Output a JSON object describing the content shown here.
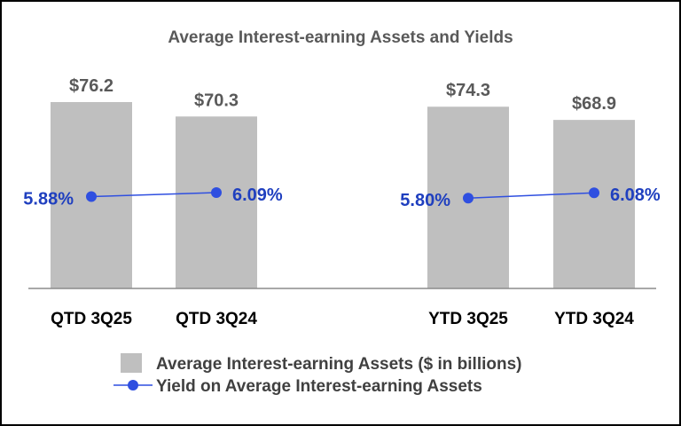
{
  "chart_data": {
    "type": "bar",
    "title": "Average Interest-earning Assets and Yields",
    "categories": [
      "QTD 3Q25",
      "QTD 3Q24",
      "YTD 3Q25",
      "YTD 3Q24"
    ],
    "groups": [
      [
        "QTD 3Q25",
        "QTD 3Q24"
      ],
      [
        "YTD 3Q25",
        "YTD 3Q24"
      ]
    ],
    "series": [
      {
        "name": "Average Interest-earning Assets ($ in billions)",
        "kind": "bar",
        "values": [
          76.2,
          70.3,
          74.3,
          68.9
        ],
        "labels": [
          "$76.2",
          "$70.3",
          "$74.3",
          "$68.9"
        ],
        "color": "#bfbfbf"
      },
      {
        "name": "Yield on Average Interest-earning Assets",
        "kind": "line",
        "values": [
          5.88,
          6.09,
          5.8,
          6.08
        ],
        "labels": [
          "5.88%",
          "6.09%",
          "5.80%",
          "6.08%"
        ],
        "color": "#2f4fe0"
      }
    ],
    "legend": "bottom",
    "grid": false
  }
}
